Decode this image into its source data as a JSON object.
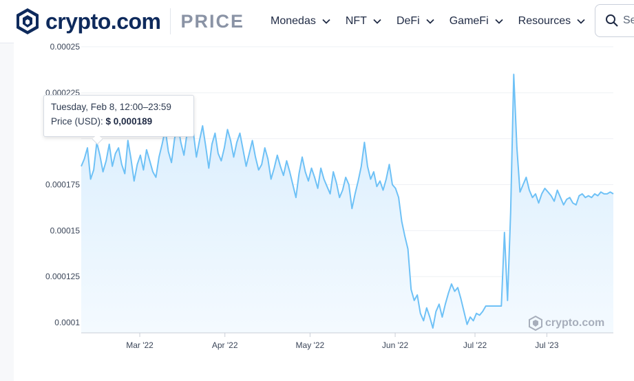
{
  "header": {
    "brand": "crypto.com",
    "section": "PRICE",
    "nav": [
      {
        "label": "Monedas"
      },
      {
        "label": "NFT"
      },
      {
        "label": "DeFi"
      },
      {
        "label": "GameFi"
      },
      {
        "label": "Resources"
      }
    ],
    "search_placeholder": "Se"
  },
  "tooltip": {
    "date": "Tuesday, Feb 8, 12:00–23:59",
    "price_label": "Price (USD):",
    "price_value": "$ 0,000189"
  },
  "watermark": "crypto.com",
  "colors": {
    "line": "#6ec1f6",
    "fill_top": "#d6ecfd",
    "fill_bottom": "#f4faff",
    "brand": "#0e2a5c"
  },
  "chart_data": {
    "type": "area",
    "title": "",
    "xlabel": "",
    "ylabel": "",
    "ylim": [
      9.44e-05,
      0.00025
    ],
    "y_ticks": [
      0.0001,
      0.000125,
      0.00015,
      0.000175,
      0.0002,
      0.000225,
      0.00025
    ],
    "y_tick_labels": [
      "0.0001",
      "0.000125",
      "0.00015",
      "0.000175",
      "",
      "0.000225",
      "0.00025"
    ],
    "x_tick_labels": [
      "Mar '22",
      "Apr '22",
      "May '22",
      "Jun '22",
      "Jul '22",
      "Jul '23"
    ],
    "grid": true,
    "series": [
      {
        "values": [
          0.000185,
          0.000189,
          0.000195,
          0.000178,
          0.000183,
          0.000198,
          0.000191,
          0.000182,
          0.000188,
          0.000197,
          0.000185,
          0.000192,
          0.000195,
          0.000186,
          0.000181,
          0.000199,
          0.000189,
          0.000177,
          0.000186,
          0.000191,
          0.000183,
          0.000194,
          0.000188,
          0.000182,
          0.000179,
          0.00019,
          0.000197,
          0.000205,
          0.000193,
          0.000187,
          0.0002,
          0.000208,
          0.000198,
          0.000191,
          0.000203,
          0.000212,
          0.000204,
          0.00019,
          0.000199,
          0.000207,
          0.000196,
          0.000184,
          0.000197,
          0.000203,
          0.000192,
          0.000188,
          0.000195,
          0.000205,
          0.000199,
          0.00019,
          0.000198,
          0.000203,
          0.000194,
          0.000185,
          0.000192,
          0.000199,
          0.00019,
          0.000183,
          0.000186,
          0.000195,
          0.000189,
          0.000178,
          0.000184,
          0.000191,
          0.000185,
          0.00018,
          0.000188,
          0.000182,
          0.000175,
          0.000168,
          0.000181,
          0.00019,
          0.000182,
          0.000177,
          0.000184,
          0.000179,
          0.000173,
          0.000184,
          0.000178,
          0.000174,
          0.00017,
          0.000182,
          0.000176,
          0.000168,
          0.000172,
          0.000179,
          0.000175,
          0.000162,
          0.00017,
          0.000177,
          0.000185,
          0.000198,
          0.000185,
          0.000178,
          0.000182,
          0.000174,
          0.000177,
          0.000172,
          0.000178,
          0.000186,
          0.000175,
          0.000173,
          0.000168,
          0.000155,
          0.000147,
          0.00014,
          0.000118,
          0.000112,
          0.000115,
          0.000105,
          0.000101,
          0.000108,
          0.000103,
          9.7e-05,
          0.000106,
          0.00011,
          0.000103,
          0.00011,
          0.000116,
          0.000121,
          0.000117,
          0.000119,
          0.000113,
          0.000106,
          9.9e-05,
          0.000103,
          0.000101,
          0.000105,
          0.000104,
          0.000106,
          0.000109,
          0.000109,
          0.000109,
          0.000109,
          0.000109,
          0.000109,
          0.000149,
          0.000112,
          0.00016,
          0.000235,
          0.000195,
          0.000171,
          0.000175,
          0.000179,
          0.000172,
          0.000168,
          0.00017,
          0.000165,
          0.00017,
          0.000173,
          0.000171,
          0.000169,
          0.000166,
          0.000172,
          0.000168,
          0.000164,
          0.000167,
          0.000168,
          0.000165,
          0.000164,
          0.000169,
          0.00017,
          0.000168,
          0.000169,
          0.000168,
          0.00017,
          0.000169,
          0.000171,
          0.00017,
          0.00017,
          0.000171,
          0.00017
        ]
      }
    ]
  }
}
